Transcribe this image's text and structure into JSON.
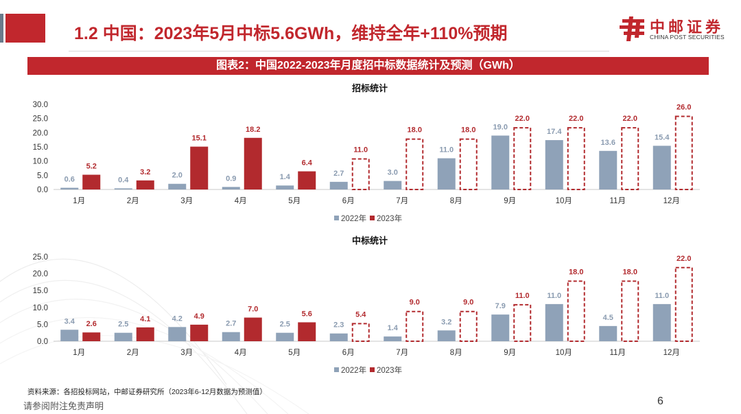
{
  "header": {
    "title": "1.2 中国：2023年5月中标5.6GWh，维持全年+110%预期",
    "logo_cn": "中邮证券",
    "logo_en": "CHINA POST SECURITIES",
    "logo_icon": "china-post-logo-icon"
  },
  "banner": {
    "title": "图表2：中国2022-2023年月度招中标数据统计及预测（GWh）"
  },
  "footer": {
    "source": "资料来源：各招投标网站，中邮证券研究所（2023年6-12月数据为预测值）",
    "disclaimer": "请参阅附注免责声明",
    "page": "6"
  },
  "colors": {
    "accent": "#c1272d",
    "series_2022": "#8fa2b8",
    "series_2023": "#b22a2e"
  },
  "chart_data": [
    {
      "type": "bar",
      "title": "招标统计",
      "categories": [
        "1月",
        "2月",
        "3月",
        "4月",
        "5月",
        "6月",
        "7月",
        "8月",
        "9月",
        "10月",
        "11月",
        "12月"
      ],
      "series": [
        {
          "name": "2022年",
          "values": [
            0.6,
            0.4,
            2.0,
            0.9,
            1.4,
            2.7,
            3.0,
            11.0,
            19.0,
            17.4,
            13.6,
            15.4
          ]
        },
        {
          "name": "2023年",
          "values": [
            5.2,
            3.2,
            15.1,
            18.2,
            6.4,
            11.0,
            18.0,
            18.0,
            22.0,
            22.0,
            22.0,
            26.0
          ],
          "forecast_from_index": 5
        }
      ],
      "yticks": [
        "0.0",
        "5.0",
        "10.0",
        "15.0",
        "20.0",
        "25.0",
        "30.0"
      ],
      "ylim": [
        0,
        30
      ],
      "legend_position": "bottom"
    },
    {
      "type": "bar",
      "title": "中标统计",
      "categories": [
        "1月",
        "2月",
        "3月",
        "4月",
        "5月",
        "6月",
        "7月",
        "8月",
        "9月",
        "10月",
        "11月",
        "12月"
      ],
      "series": [
        {
          "name": "2022年",
          "values": [
            3.4,
            2.5,
            4.2,
            2.7,
            2.5,
            2.3,
            1.4,
            3.2,
            7.9,
            11.0,
            4.5,
            11.0
          ]
        },
        {
          "name": "2023年",
          "values": [
            2.6,
            4.1,
            4.9,
            7.0,
            5.6,
            5.4,
            9.0,
            9.0,
            11.0,
            18.0,
            18.0,
            22.0
          ],
          "forecast_from_index": 5
        }
      ],
      "yticks": [
        "0.0",
        "5.0",
        "10.0",
        "15.0",
        "20.0",
        "25.0"
      ],
      "ylim": [
        0,
        25
      ],
      "legend_position": "bottom"
    }
  ]
}
